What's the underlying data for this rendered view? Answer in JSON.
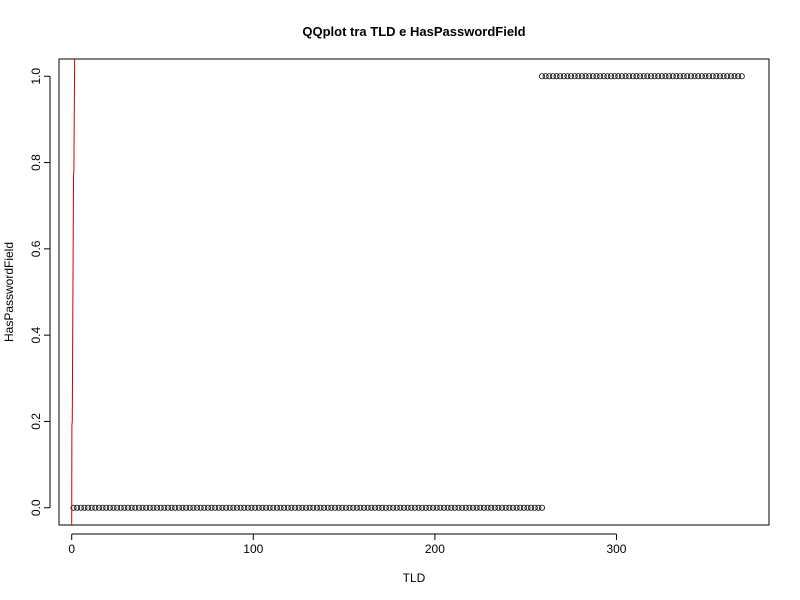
{
  "chart_data": {
    "type": "scatter",
    "title": "QQplot tra TLD e HasPasswordField",
    "xlabel": "TLD",
    "ylabel": "HasPasswordField",
    "xlim": [
      -7,
      384
    ],
    "ylim": [
      -0.04,
      1.04
    ],
    "x_ticks": [
      0,
      100,
      200,
      300
    ],
    "y_ticks": [
      "0.0",
      "0.2",
      "0.4",
      "0.6",
      "0.8",
      "1.0"
    ],
    "grid": false,
    "legend": "none",
    "colors": {
      "points": "#000000",
      "reference_line": "#cc0000",
      "frame": "#000000"
    },
    "series": [
      {
        "group": "HasPasswordField = 0",
        "x_start": 1,
        "x_end": 259,
        "x_step": 2,
        "y": 0
      },
      {
        "group": "HasPasswordField = 1",
        "x_start": 259,
        "x_end": 369,
        "x_step": 2,
        "y": 1
      }
    ],
    "reference_line": {
      "points": [
        [
          0.0,
          -0.04
        ],
        [
          0.1,
          0.19
        ],
        [
          0.3,
          0.2
        ],
        [
          1.0,
          0.77
        ],
        [
          1.2,
          0.78
        ],
        [
          1.6,
          1.04
        ]
      ]
    }
  }
}
